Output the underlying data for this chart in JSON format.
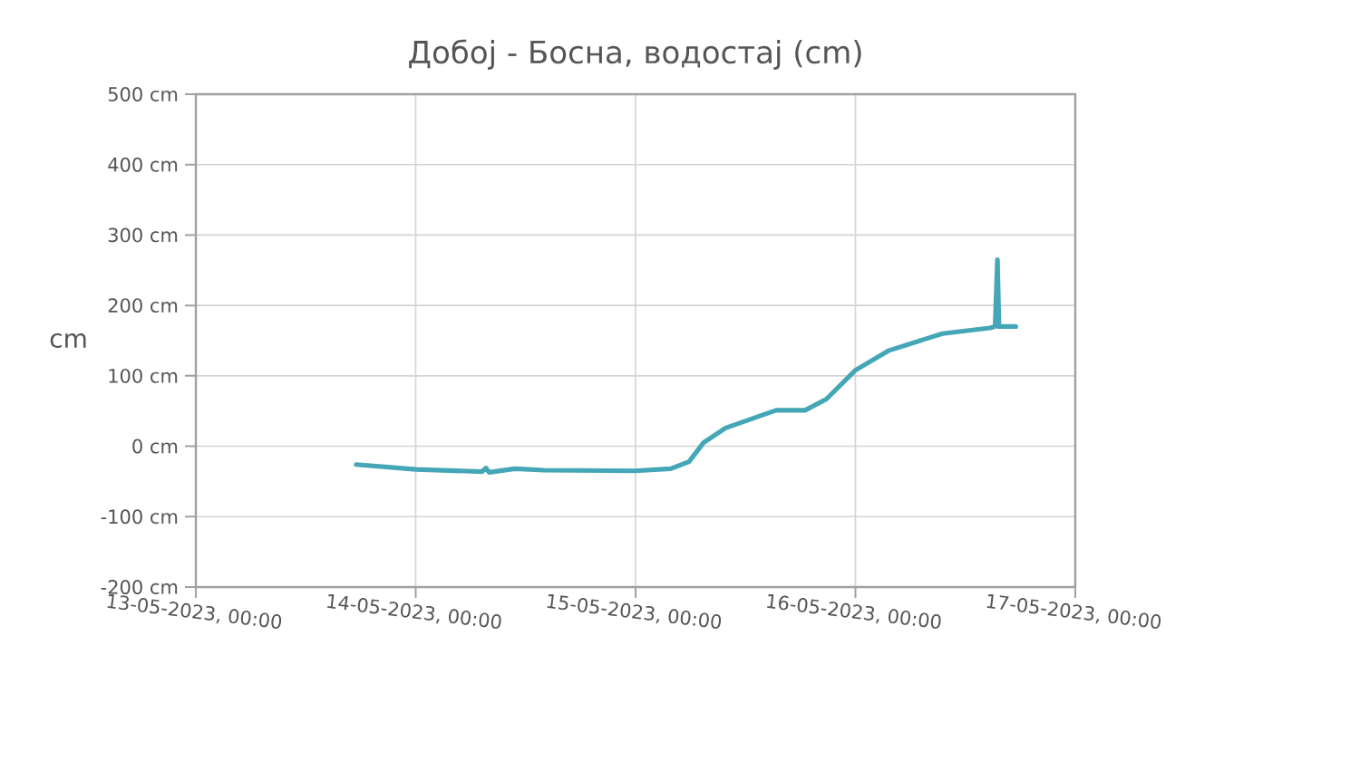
{
  "chart_data": {
    "type": "line",
    "title": "Добој - Босна, водостај (cm)",
    "ylabel": "cm",
    "x": [
      "2023-05-13T17:30",
      "2023-05-14T00:00",
      "2023-05-14T07:15",
      "2023-05-14T07:40",
      "2023-05-14T08:00",
      "2023-05-14T10:50",
      "2023-05-14T14:00",
      "2023-05-14T23:55",
      "2023-05-15T03:50",
      "2023-05-15T05:50",
      "2023-05-15T07:25",
      "2023-05-15T09:50",
      "2023-05-15T15:20",
      "2023-05-15T18:30",
      "2023-05-15T20:50",
      "2023-05-16T00:00",
      "2023-05-16T03:40",
      "2023-05-16T09:30",
      "2023-05-16T14:40",
      "2023-05-16T15:15",
      "2023-05-16T15:30",
      "2023-05-16T15:40",
      "2023-05-16T17:30"
    ],
    "series": [
      {
        "color": "#44a6b6",
        "values": [
          -26,
          -33,
          -36,
          -31,
          -37,
          -32,
          -34,
          -35,
          -32,
          -22,
          5,
          26,
          51,
          51,
          67,
          108,
          136,
          160,
          168,
          170,
          265,
          170,
          170
        ]
      }
    ],
    "xlim": [
      "2023-05-13T00:00",
      "2023-05-17T00:00"
    ],
    "xticks": [
      {
        "value": "2023-05-13T00:00",
        "label": "13-05-2023, 00:00"
      },
      {
        "value": "2023-05-14T00:00",
        "label": "14-05-2023, 00:00"
      },
      {
        "value": "2023-05-15T00:00",
        "label": "15-05-2023, 00:00"
      },
      {
        "value": "2023-05-16T00:00",
        "label": "16-05-2023, 00:00"
      },
      {
        "value": "2023-05-17T00:00",
        "label": "17-05-2023, 00:00"
      }
    ],
    "ylim": [
      -200,
      500
    ],
    "yticks": [
      {
        "value": -200,
        "label": "-200 cm"
      },
      {
        "value": -100,
        "label": "-100 cm"
      },
      {
        "value": 0,
        "label": "0 cm"
      },
      {
        "value": 100,
        "label": "100 cm"
      },
      {
        "value": 200,
        "label": "200 cm"
      },
      {
        "value": 300,
        "label": "300 cm"
      },
      {
        "value": 400,
        "label": "400 cm"
      },
      {
        "value": 500,
        "label": "500 cm"
      }
    ],
    "grid": true,
    "marker": "none",
    "line_style": "solid"
  }
}
